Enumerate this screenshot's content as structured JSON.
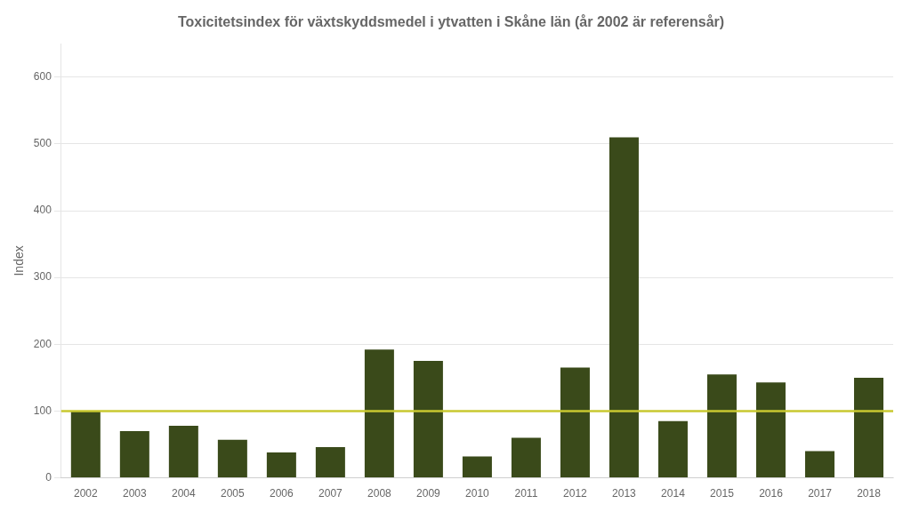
{
  "chart_data": {
    "type": "bar",
    "title": "Toxicitetsindex för växtskyddsmedel i ytvatten i Skåne län (år 2002 är referensår)",
    "ylabel": "Index",
    "categories": [
      "2002",
      "2003",
      "2004",
      "2005",
      "2006",
      "2007",
      "2008",
      "2009",
      "2010",
      "2011",
      "2012",
      "2013",
      "2014",
      "2015",
      "2016",
      "2017",
      "2018"
    ],
    "values": [
      100,
      70,
      78,
      57,
      38,
      46,
      192,
      175,
      32,
      60,
      165,
      510,
      85,
      155,
      143,
      40,
      150
    ],
    "color": "#3a4a1a",
    "reference_line": {
      "y": 100,
      "color": "#c8c830"
    },
    "ylim": [
      0,
      650
    ],
    "yticks": [
      0,
      100,
      200,
      300,
      400,
      500,
      600
    ],
    "grid": true
  }
}
